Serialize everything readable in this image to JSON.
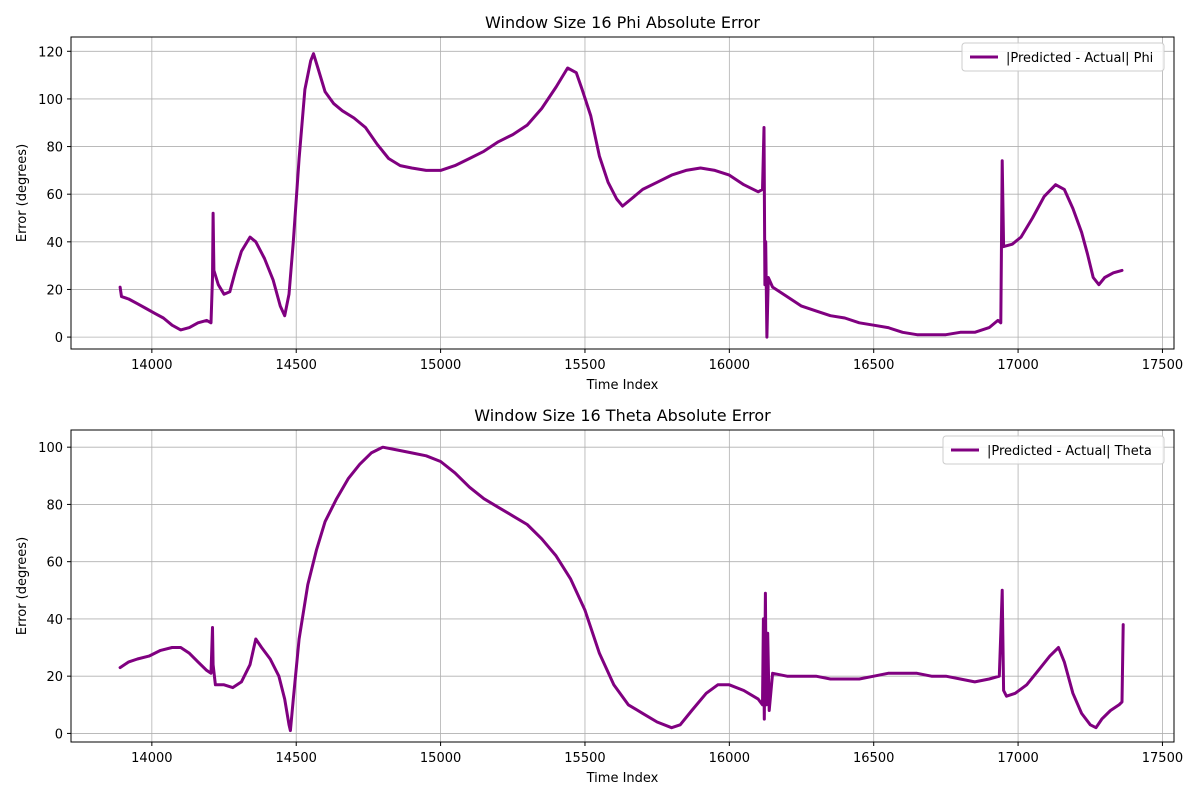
{
  "chart_data": [
    {
      "type": "line",
      "title": "Window Size 16 Phi Absolute Error",
      "xlabel": "Time Index",
      "ylabel": "Error (degrees)",
      "xlim": [
        13720,
        17540
      ],
      "ylim": [
        -5,
        126
      ],
      "x_ticks": [
        14000,
        14500,
        15000,
        15500,
        16000,
        16500,
        17000,
        17500
      ],
      "y_ticks": [
        0,
        20,
        40,
        60,
        80,
        100,
        120
      ],
      "grid": true,
      "legend_position": "top-right",
      "color": "#800080",
      "series": [
        {
          "name": "|Predicted - Actual| Phi",
          "points": [
            [
              13890,
              21
            ],
            [
              13895,
              17
            ],
            [
              13920,
              16
            ],
            [
              13950,
              14
            ],
            [
              13980,
              12
            ],
            [
              14010,
              10
            ],
            [
              14040,
              8
            ],
            [
              14070,
              5
            ],
            [
              14100,
              3
            ],
            [
              14130,
              4
            ],
            [
              14160,
              6
            ],
            [
              14190,
              7
            ],
            [
              14205,
              6
            ],
            [
              14210,
              25
            ],
            [
              14212,
              52
            ],
            [
              14215,
              28
            ],
            [
              14230,
              22
            ],
            [
              14250,
              18
            ],
            [
              14270,
              19
            ],
            [
              14290,
              28
            ],
            [
              14310,
              36
            ],
            [
              14340,
              42
            ],
            [
              14360,
              40
            ],
            [
              14390,
              33
            ],
            [
              14420,
              24
            ],
            [
              14445,
              13
            ],
            [
              14460,
              9
            ],
            [
              14475,
              18
            ],
            [
              14490,
              40
            ],
            [
              14510,
              75
            ],
            [
              14530,
              104
            ],
            [
              14550,
              116
            ],
            [
              14560,
              119
            ],
            [
              14575,
              113
            ],
            [
              14600,
              103
            ],
            [
              14630,
              98
            ],
            [
              14660,
              95
            ],
            [
              14700,
              92
            ],
            [
              14740,
              88
            ],
            [
              14780,
              81
            ],
            [
              14820,
              75
            ],
            [
              14860,
              72
            ],
            [
              14900,
              71
            ],
            [
              14950,
              70
            ],
            [
              15000,
              70
            ],
            [
              15050,
              72
            ],
            [
              15100,
              75
            ],
            [
              15150,
              78
            ],
            [
              15200,
              82
            ],
            [
              15250,
              85
            ],
            [
              15300,
              89
            ],
            [
              15350,
              96
            ],
            [
              15400,
              105
            ],
            [
              15440,
              113
            ],
            [
              15470,
              111
            ],
            [
              15490,
              104
            ],
            [
              15520,
              93
            ],
            [
              15550,
              76
            ],
            [
              15580,
              65
            ],
            [
              15610,
              58
            ],
            [
              15630,
              55
            ],
            [
              15660,
              58
            ],
            [
              15700,
              62
            ],
            [
              15750,
              65
            ],
            [
              15800,
              68
            ],
            [
              15850,
              70
            ],
            [
              15900,
              71
            ],
            [
              15950,
              70
            ],
            [
              16000,
              68
            ],
            [
              16050,
              64
            ],
            [
              16100,
              61
            ],
            [
              16115,
              62
            ],
            [
              16120,
              88
            ],
            [
              16123,
              22
            ],
            [
              16126,
              40
            ],
            [
              16130,
              0
            ],
            [
              16135,
              25
            ],
            [
              16150,
              21
            ],
            [
              16200,
              17
            ],
            [
              16250,
              13
            ],
            [
              16300,
              11
            ],
            [
              16350,
              9
            ],
            [
              16400,
              8
            ],
            [
              16450,
              6
            ],
            [
              16500,
              5
            ],
            [
              16550,
              4
            ],
            [
              16600,
              2
            ],
            [
              16650,
              1
            ],
            [
              16700,
              1
            ],
            [
              16750,
              1
            ],
            [
              16800,
              2
            ],
            [
              16850,
              2
            ],
            [
              16900,
              4
            ],
            [
              16930,
              7
            ],
            [
              16940,
              6
            ],
            [
              16945,
              74
            ],
            [
              16950,
              38
            ],
            [
              16980,
              39
            ],
            [
              17010,
              42
            ],
            [
              17050,
              50
            ],
            [
              17090,
              59
            ],
            [
              17130,
              64
            ],
            [
              17160,
              62
            ],
            [
              17190,
              54
            ],
            [
              17220,
              44
            ],
            [
              17240,
              35
            ],
            [
              17260,
              25
            ],
            [
              17280,
              22
            ],
            [
              17300,
              25
            ],
            [
              17330,
              27
            ],
            [
              17360,
              28
            ]
          ]
        }
      ]
    },
    {
      "type": "line",
      "title": "Window Size 16 Theta Absolute Error",
      "xlabel": "Time Index",
      "ylabel": "Error (degrees)",
      "xlim": [
        13720,
        17540
      ],
      "ylim": [
        -3,
        106
      ],
      "x_ticks": [
        14000,
        14500,
        15000,
        15500,
        16000,
        16500,
        17000,
        17500
      ],
      "y_ticks": [
        0,
        20,
        40,
        60,
        80,
        100
      ],
      "grid": true,
      "legend_position": "top-right",
      "color": "#800080",
      "series": [
        {
          "name": "|Predicted - Actual| Theta",
          "points": [
            [
              13890,
              23
            ],
            [
              13920,
              25
            ],
            [
              13950,
              26
            ],
            [
              13990,
              27
            ],
            [
              14030,
              29
            ],
            [
              14070,
              30
            ],
            [
              14100,
              30
            ],
            [
              14130,
              28
            ],
            [
              14160,
              25
            ],
            [
              14190,
              22
            ],
            [
              14205,
              21
            ],
            [
              14210,
              37
            ],
            [
              14212,
              24
            ],
            [
              14220,
              17
            ],
            [
              14250,
              17
            ],
            [
              14280,
              16
            ],
            [
              14310,
              18
            ],
            [
              14340,
              24
            ],
            [
              14360,
              33
            ],
            [
              14380,
              30
            ],
            [
              14410,
              26
            ],
            [
              14440,
              20
            ],
            [
              14460,
              12
            ],
            [
              14475,
              3
            ],
            [
              14480,
              1
            ],
            [
              14490,
              12
            ],
            [
              14510,
              33
            ],
            [
              14540,
              52
            ],
            [
              14570,
              64
            ],
            [
              14600,
              74
            ],
            [
              14640,
              82
            ],
            [
              14680,
              89
            ],
            [
              14720,
              94
            ],
            [
              14760,
              98
            ],
            [
              14800,
              100
            ],
            [
              14850,
              99
            ],
            [
              14900,
              98
            ],
            [
              14950,
              97
            ],
            [
              15000,
              95
            ],
            [
              15050,
              91
            ],
            [
              15100,
              86
            ],
            [
              15150,
              82
            ],
            [
              15200,
              79
            ],
            [
              15250,
              76
            ],
            [
              15300,
              73
            ],
            [
              15350,
              68
            ],
            [
              15400,
              62
            ],
            [
              15450,
              54
            ],
            [
              15500,
              43
            ],
            [
              15550,
              28
            ],
            [
              15600,
              17
            ],
            [
              15650,
              10
            ],
            [
              15700,
              7
            ],
            [
              15750,
              4
            ],
            [
              15800,
              2
            ],
            [
              15830,
              3
            ],
            [
              15870,
              8
            ],
            [
              15920,
              14
            ],
            [
              15960,
              17
            ],
            [
              16000,
              17
            ],
            [
              16050,
              15
            ],
            [
              16100,
              12
            ],
            [
              16115,
              10
            ],
            [
              16118,
              40
            ],
            [
              16121,
              5
            ],
            [
              16125,
              49
            ],
            [
              16128,
              10
            ],
            [
              16133,
              35
            ],
            [
              16138,
              8
            ],
            [
              16150,
              21
            ],
            [
              16200,
              20
            ],
            [
              16250,
              20
            ],
            [
              16300,
              20
            ],
            [
              16350,
              19
            ],
            [
              16400,
              19
            ],
            [
              16450,
              19
            ],
            [
              16500,
              20
            ],
            [
              16550,
              21
            ],
            [
              16600,
              21
            ],
            [
              16650,
              21
            ],
            [
              16700,
              20
            ],
            [
              16750,
              20
            ],
            [
              16800,
              19
            ],
            [
              16850,
              18
            ],
            [
              16900,
              19
            ],
            [
              16935,
              20
            ],
            [
              16940,
              35
            ],
            [
              16945,
              50
            ],
            [
              16950,
              15
            ],
            [
              16960,
              13
            ],
            [
              16990,
              14
            ],
            [
              17030,
              17
            ],
            [
              17070,
              22
            ],
            [
              17110,
              27
            ],
            [
              17140,
              30
            ],
            [
              17160,
              25
            ],
            [
              17190,
              14
            ],
            [
              17220,
              7
            ],
            [
              17250,
              3
            ],
            [
              17270,
              2
            ],
            [
              17290,
              5
            ],
            [
              17320,
              8
            ],
            [
              17350,
              10
            ],
            [
              17360,
              11
            ],
            [
              17364,
              38
            ]
          ]
        }
      ]
    }
  ]
}
